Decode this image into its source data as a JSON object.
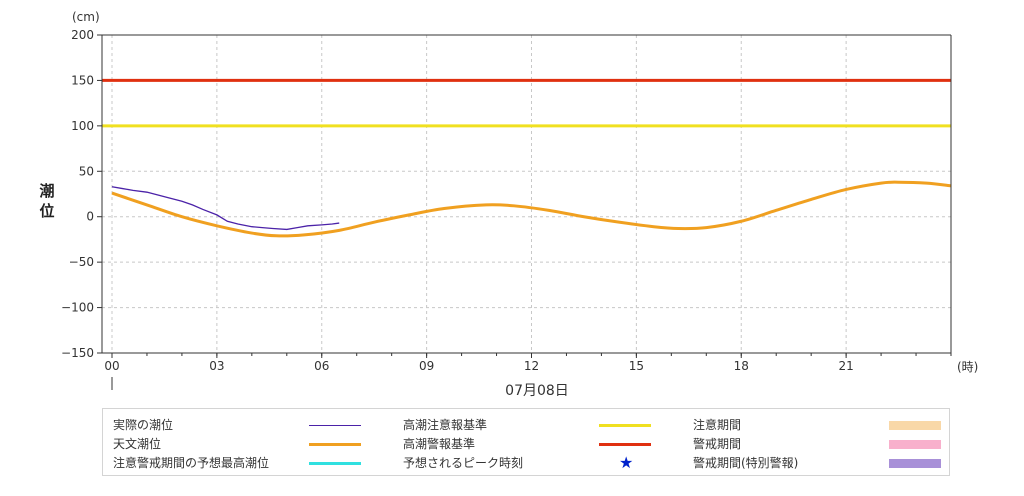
{
  "colors": {
    "observed": "#4b22a8",
    "astronomical": "#f0a020",
    "advisory": "#f0e020",
    "warning": "#e03010",
    "forecast_peak": "#30e0e0",
    "star": "#0022cc",
    "advisory_period": "#f9d8a8",
    "warning_period": "#f8b0cc",
    "special_warning_period": "#a890d8"
  },
  "chart_data": {
    "type": "line",
    "y_unit": "(cm)",
    "ylabel": "潮位",
    "x_unit": "(時)",
    "date_label": "07月08日",
    "ylim": [
      -150,
      200
    ],
    "y_ticks": [
      200,
      150,
      100,
      50,
      0,
      -50,
      -100,
      -150
    ],
    "xlim": [
      0,
      24
    ],
    "x_ticks": [
      0,
      3,
      6,
      9,
      12,
      15,
      18,
      21
    ],
    "x_tick_labels": [
      "00",
      "03",
      "06",
      "09",
      "12",
      "15",
      "18",
      "21"
    ],
    "grid": true,
    "thresholds": [
      {
        "name": "高潮警報基準",
        "value": 150
      },
      {
        "name": "高潮注意報基準",
        "value": 100
      }
    ],
    "series": [
      {
        "name": "天文潮位",
        "x": [
          0,
          1,
          2,
          3,
          4,
          4.7,
          5.5,
          6.5,
          7.5,
          8.5,
          9.5,
          10.7,
          11.5,
          12.5,
          13.5,
          14.5,
          15.5,
          16.2,
          17,
          18,
          19,
          20,
          21,
          22,
          22.5,
          23.3,
          24
        ],
        "y": [
          26,
          13,
          0,
          -10,
          -18,
          -21,
          -20,
          -15,
          -6,
          2,
          9,
          13,
          12,
          7,
          0,
          -6,
          -11,
          -13,
          -12,
          -5,
          7,
          19,
          30,
          37,
          38,
          37,
          34
        ]
      },
      {
        "name": "実際の潮位",
        "x": [
          0,
          0.3,
          0.6,
          1.0,
          1.3,
          1.6,
          2.0,
          2.3,
          2.6,
          3.0,
          3.3,
          3.6,
          4.0,
          4.3,
          4.6,
          5.0,
          5.3,
          5.6,
          6.0,
          6.3,
          6.5
        ],
        "y": [
          33,
          31,
          29,
          27,
          24,
          21,
          17,
          13,
          8,
          2,
          -5,
          -8,
          -11,
          -12,
          -13,
          -14,
          -12,
          -10,
          -9,
          -8,
          -7
        ]
      }
    ],
    "legend": [
      {
        "label": "実際の潮位",
        "kind": "line",
        "color": "observed"
      },
      {
        "label": "高潮注意報基準",
        "kind": "line",
        "color": "advisory"
      },
      {
        "label": "注意期間",
        "kind": "swatch",
        "color": "advisory_period"
      },
      {
        "label": "天文潮位",
        "kind": "line",
        "color": "astronomical"
      },
      {
        "label": "高潮警報基準",
        "kind": "line",
        "color": "warning"
      },
      {
        "label": "警戒期間",
        "kind": "swatch",
        "color": "warning_period"
      },
      {
        "label": "注意警戒期間の予想最高潮位",
        "kind": "line",
        "color": "forecast_peak"
      },
      {
        "label": "予想されるピーク時刻",
        "kind": "star",
        "color": "star"
      },
      {
        "label": "警戒期間(特別警報)",
        "kind": "swatch",
        "color": "special_warning_period"
      }
    ]
  }
}
